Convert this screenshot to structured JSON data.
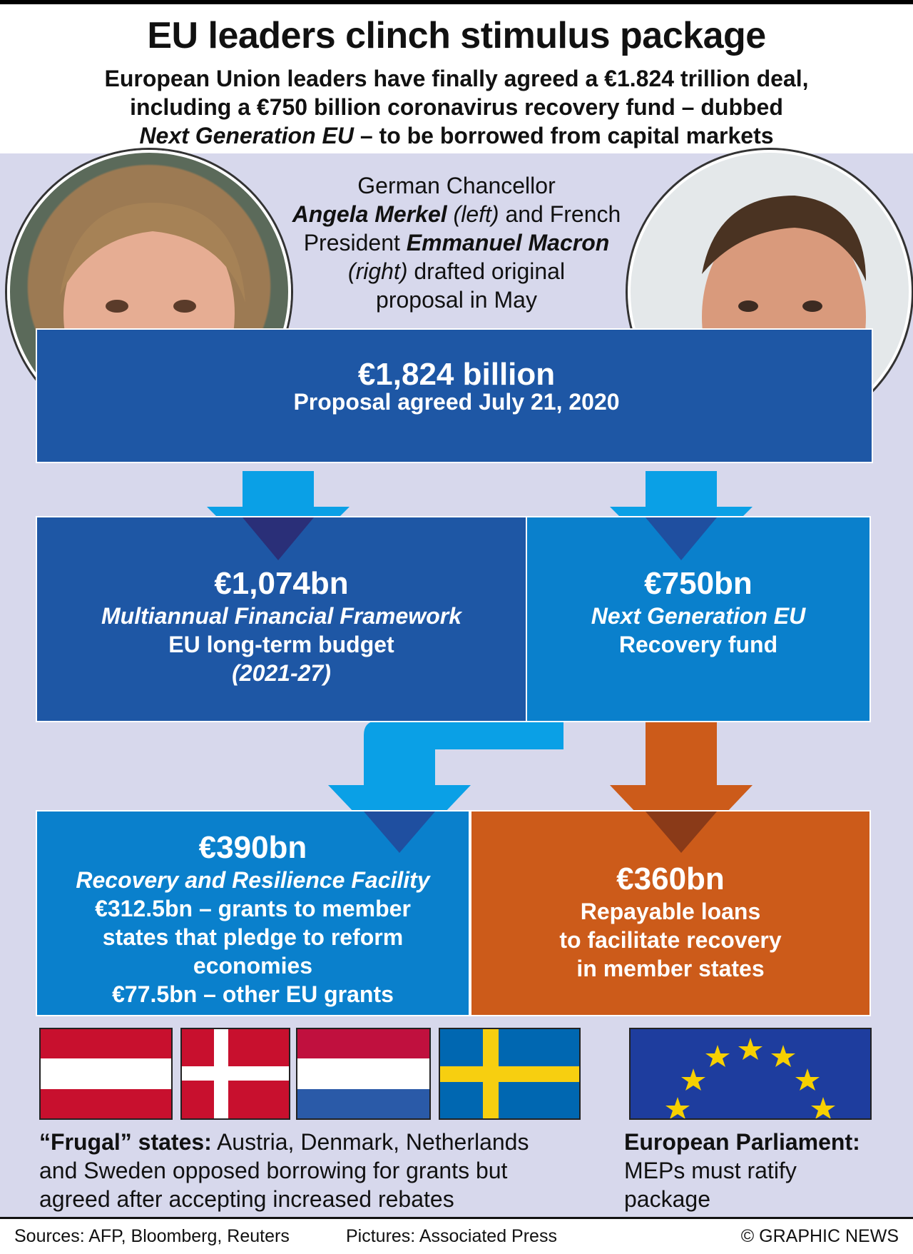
{
  "header": {
    "title": "EU leaders clinch stimulus package",
    "subtitle_line1": "European Union leaders have finally agreed a €1.824 trillion deal,",
    "subtitle_line2": "including a €750 billion coronavirus recovery fund – dubbed",
    "subtitle_line3_italic": "Next Generation EU",
    "subtitle_line3_rest": " – to be borrowed from capital markets"
  },
  "caption": {
    "line1": "German Chancellor",
    "merkel": "Angela Merkel",
    "left": " (left)",
    "and_french": " and French",
    "president": "President ",
    "macron": "Emmanuel Macron",
    "right": "(right)",
    "drafted": " drafted original",
    "line5": "proposal in May"
  },
  "total": {
    "amount": "€1,824 billion",
    "label": "Proposal agreed July 21, 2020"
  },
  "mff": {
    "amount": "€1,074bn",
    "name": "Multiannual Financial Framework",
    "desc": "EU long-term budget",
    "period": "(2021-27)"
  },
  "ngeu": {
    "amount": "€750bn",
    "name": "Next Generation EU",
    "desc": "Recovery fund"
  },
  "rrf": {
    "amount": "€390bn",
    "name": "Recovery and Resilience Facility",
    "line1": "€312.5bn – grants to member",
    "line2": "states that pledge to reform",
    "line3": "economies",
    "line4": "€77.5bn – other EU grants"
  },
  "loans": {
    "amount": "€360bn",
    "line1": "Repayable loans",
    "line2": "to facilitate recovery",
    "line3": "in member states"
  },
  "frugal": {
    "label": "“Frugal” states:",
    "text1": " Austria, Denmark, Netherlands",
    "text2": "and Sweden opposed borrowing for grants but",
    "text3": "agreed after accepting increased rebates"
  },
  "parliament": {
    "label": "European Parliament:",
    "text1": "MEPs must ratify",
    "text2": "package"
  },
  "footer": {
    "sources": "Sources: AFP, Bloomberg, Reuters",
    "pictures": "Pictures: Associated Press",
    "credit": "© GRAPHIC NEWS"
  },
  "colors": {
    "dark_blue": "#1e57a5",
    "light_blue": "#0a80cc",
    "arrow_blue": "#0aa0e6",
    "orange": "#cc5b1a",
    "panel": "#d7d8ec"
  }
}
